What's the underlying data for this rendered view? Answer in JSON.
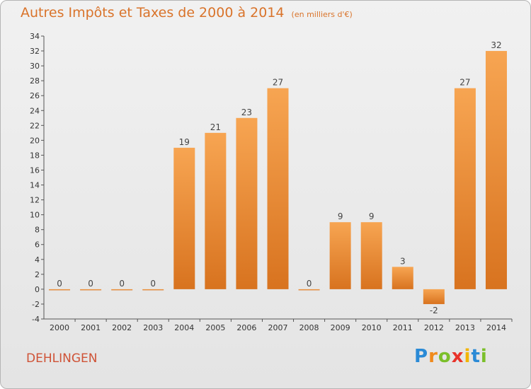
{
  "chart_data": {
    "type": "bar",
    "title": "Autres Impôts et Taxes de 2000 à 2014",
    "subtitle": "(en milliers d'€)",
    "categories": [
      "2000",
      "2001",
      "2002",
      "2003",
      "2004",
      "2005",
      "2006",
      "2007",
      "2008",
      "2009",
      "2010",
      "2011",
      "2012",
      "2013",
      "2014"
    ],
    "values": [
      0,
      0,
      0,
      0,
      19,
      21,
      23,
      27,
      0,
      9,
      9,
      3,
      -2,
      27,
      32
    ],
    "data_labels": [
      "0",
      "0",
      "0",
      "0",
      "19",
      "21",
      "23",
      "27",
      "0",
      "9",
      "9",
      "3",
      "-2",
      "27",
      "32"
    ],
    "ylim": [
      -4,
      34
    ],
    "yticks": [
      -4,
      -2,
      0,
      2,
      4,
      6,
      8,
      10,
      12,
      14,
      16,
      18,
      20,
      22,
      24,
      26,
      28,
      30,
      32,
      34
    ],
    "ytick_labels": [
      "-4",
      "-2",
      "0",
      "2",
      "4",
      "6",
      "8",
      "10",
      "12",
      "14",
      "16",
      "18",
      "20",
      "22",
      "24",
      "26",
      "28",
      "30",
      "32",
      "34"
    ],
    "grid": false,
    "colors": {
      "bar_light": "#f7a552",
      "bar_dark": "#d8731f",
      "axis": "#555555"
    }
  },
  "footer": {
    "location": "DEHLINGEN",
    "logo": {
      "p": "P",
      "r": "r",
      "o": "o",
      "x": "x",
      "i1": "i",
      "t": "t",
      "i2": "i"
    }
  }
}
